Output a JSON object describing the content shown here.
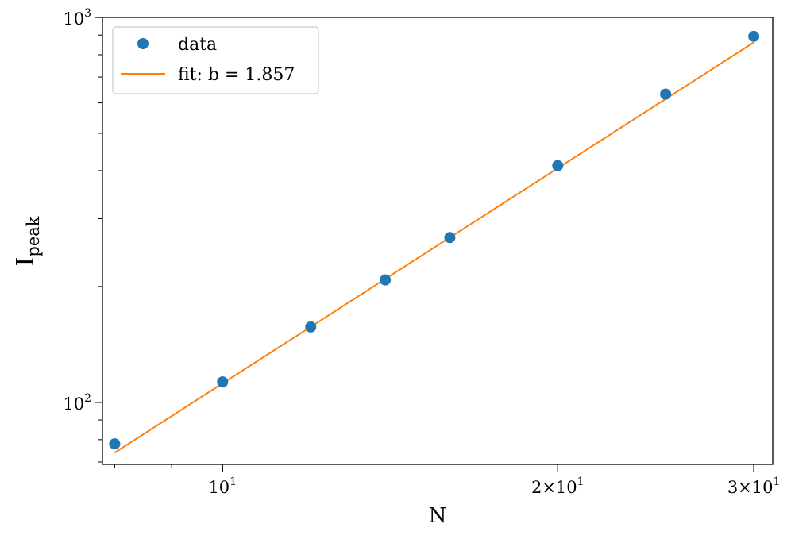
{
  "chart_data": {
    "type": "scatter",
    "xscale": "log",
    "yscale": "log",
    "xlabel": "N",
    "ylabel": "I",
    "ylabel_sub": "peak",
    "xlim": [
      7.8,
      31.2
    ],
    "ylim": [
      69,
      1000
    ],
    "x_ticks": [
      {
        "value": 10,
        "base": "10",
        "exp": "1"
      },
      {
        "value": 20,
        "base": "2×10",
        "exp": "1"
      },
      {
        "value": 30,
        "base": "3×10",
        "exp": "1"
      }
    ],
    "y_ticks": [
      {
        "value": 100,
        "base": "10",
        "exp": "2"
      },
      {
        "value": 1000,
        "base": "10",
        "exp": "3"
      }
    ],
    "x_minor_ticks": [
      8,
      9,
      40
    ],
    "y_minor_ticks": [
      70,
      80,
      90,
      200,
      300,
      400,
      500,
      600,
      700,
      800,
      900
    ],
    "series": [
      {
        "name": "data",
        "kind": "points",
        "color": "#1f77b4",
        "x": [
          8,
          10,
          12,
          14,
          16,
          20,
          25,
          30
        ],
        "y": [
          78,
          113,
          157,
          208,
          268,
          412,
          632,
          893
        ]
      },
      {
        "name": "fit: b = 1.857",
        "kind": "line",
        "color": "#ff7f0e",
        "slope": 1.857,
        "intercept_at_N10": 112,
        "x_range": [
          8,
          30
        ]
      }
    ],
    "legend": {
      "position": "top-left"
    }
  }
}
